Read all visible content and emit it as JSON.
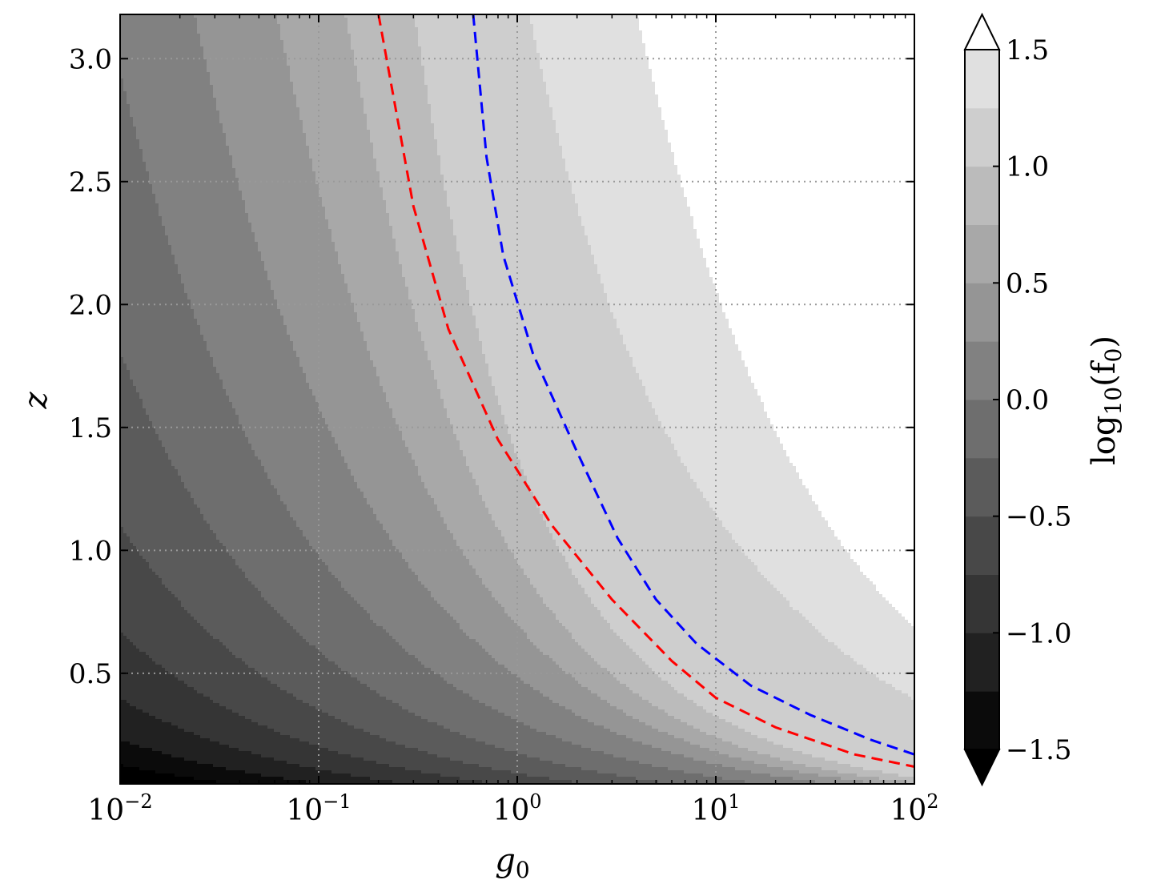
{
  "chart_data": {
    "type": "heatmap",
    "title": "",
    "xlabel": "g",
    "xlabel_sub": "0",
    "ylabel": "z",
    "xscale": "log",
    "xlim": [
      0.01,
      100
    ],
    "ylim": [
      0.05,
      3.18
    ],
    "grid": true,
    "x_ticks": [
      {
        "value": 0.01,
        "base": "10",
        "exp": "−2"
      },
      {
        "value": 0.1,
        "base": "10",
        "exp": "−1"
      },
      {
        "value": 1,
        "base": "10",
        "exp": "0"
      },
      {
        "value": 10,
        "base": "10",
        "exp": "1"
      },
      {
        "value": 100,
        "base": "10",
        "exp": "2"
      }
    ],
    "y_ticks": [
      {
        "value": 0.5,
        "label": "0.5"
      },
      {
        "value": 1.0,
        "label": "1.0"
      },
      {
        "value": 1.5,
        "label": "1.5"
      },
      {
        "value": 2.0,
        "label": "2.0"
      },
      {
        "value": 2.5,
        "label": "2.5"
      },
      {
        "value": 3.0,
        "label": "3.0"
      }
    ],
    "colorbar": {
      "label_main": "log",
      "label_sub": "10",
      "label_rest": "(f",
      "label_rest_sub": "0",
      "label_close": ")",
      "levels": [
        -1.5,
        -1.25,
        -1.0,
        -0.75,
        -0.5,
        -0.25,
        0.0,
        0.25,
        0.5,
        0.75,
        1.0,
        1.25,
        1.5
      ],
      "level_colors": [
        "#0b0b0b",
        "#212121",
        "#353535",
        "#484848",
        "#5b5b5b",
        "#6e6e6e",
        "#818181",
        "#959595",
        "#a8a8a8",
        "#bbbbbb",
        "#cecece",
        "#e0e0e0"
      ],
      "extend_low_color": "#000000",
      "extend_high_color": "#ffffff",
      "ticks": [
        {
          "value": -1.5,
          "label": "−1.5"
        },
        {
          "value": -1.0,
          "label": "−1.0"
        },
        {
          "value": -0.5,
          "label": "−0.5"
        },
        {
          "value": 0.0,
          "label": "0.0"
        },
        {
          "value": 0.5,
          "label": "0.5"
        },
        {
          "value": 1.0,
          "label": "1.0"
        },
        {
          "value": 1.5,
          "label": "1.5"
        }
      ]
    },
    "curves": [
      {
        "color": "#ff0000",
        "style": "dashed",
        "points": [
          [
            0.2,
            3.18
          ],
          [
            0.3,
            2.4
          ],
          [
            0.45,
            1.9
          ],
          [
            0.8,
            1.45
          ],
          [
            1.5,
            1.1
          ],
          [
            3,
            0.8
          ],
          [
            6,
            0.55
          ],
          [
            10,
            0.4
          ],
          [
            20,
            0.28
          ],
          [
            50,
            0.17
          ],
          [
            100,
            0.12
          ]
        ]
      },
      {
        "color": "#0000ff",
        "style": "dashed",
        "points": [
          [
            0.6,
            3.18
          ],
          [
            0.7,
            2.6
          ],
          [
            0.85,
            2.2
          ],
          [
            1.2,
            1.8
          ],
          [
            2,
            1.4
          ],
          [
            3.2,
            1.05
          ],
          [
            5,
            0.8
          ],
          [
            8,
            0.62
          ],
          [
            15,
            0.45
          ],
          [
            30,
            0.33
          ],
          [
            60,
            0.23
          ],
          [
            100,
            0.17
          ]
        ]
      }
    ],
    "field_model": {
      "a": 0.56,
      "b": 1.2,
      "center": 0.55,
      "peak_height": 0.5,
      "peak_width_x": 0.55,
      "peak_width_y": 0.35,
      "peak_x_offset": 0.25
    }
  }
}
